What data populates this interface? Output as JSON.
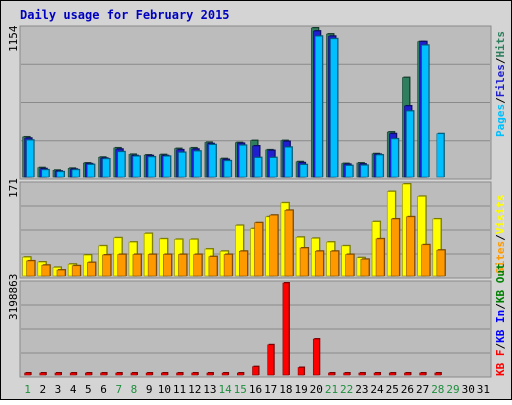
{
  "chart_data": [
    {
      "type": "bar",
      "panel": "top",
      "title": "Daily usage for February 2015",
      "ylabel_max": "1154",
      "categories": [
        "1",
        "2",
        "3",
        "4",
        "5",
        "6",
        "7",
        "8",
        "9",
        "10",
        "11",
        "12",
        "13",
        "14",
        "15",
        "16",
        "17",
        "18",
        "19",
        "20",
        "21",
        "22",
        "23",
        "24",
        "25",
        "26",
        "27",
        "28",
        "29",
        "30",
        "31"
      ],
      "legend": [
        {
          "name": "Hits",
          "color": "#2f7f5f"
        },
        {
          "name": "Files",
          "color": "#1f1fcf"
        },
        {
          "name": "Pages",
          "color": "#00bfff"
        }
      ],
      "series": [
        {
          "name": "Hits",
          "values": [
            310,
            72,
            52,
            67,
            108,
            153,
            225,
            175,
            170,
            173,
            220,
            225,
            268,
            142,
            266,
            282,
            210,
            282,
            118,
            1154,
            1107,
            104,
            108,
            180,
            348,
            770,
            1048,
            0,
            0,
            0,
            0
          ]
        },
        {
          "name": "Files",
          "values": [
            300,
            64,
            45,
            60,
            102,
            145,
            215,
            165,
            165,
            165,
            210,
            215,
            258,
            135,
            260,
            240,
            205,
            275,
            110,
            1130,
            1090,
            98,
            100,
            175,
            335,
            550,
            1048,
            0,
            0,
            0,
            0
          ]
        },
        {
          "name": "Pages",
          "values": [
            285,
            55,
            40,
            55,
            96,
            140,
            195,
            160,
            155,
            160,
            190,
            200,
            250,
            125,
            245,
            150,
            150,
            230,
            95,
            1090,
            1070,
            88,
            90,
            170,
            295,
            510,
            1020,
            335,
            0,
            0,
            0
          ]
        }
      ],
      "ylim": [
        0,
        1154
      ]
    },
    {
      "type": "bar",
      "panel": "middle",
      "ylabel_max": "171",
      "categories": [
        "1",
        "2",
        "3",
        "4",
        "5",
        "6",
        "7",
        "8",
        "9",
        "10",
        "11",
        "12",
        "13",
        "14",
        "15",
        "16",
        "17",
        "18",
        "19",
        "20",
        "21",
        "22",
        "23",
        "24",
        "25",
        "26",
        "27",
        "28",
        "29",
        "30",
        "31"
      ],
      "legend": [
        {
          "name": "Visits",
          "color": "#ffff00"
        },
        {
          "name": "Sites",
          "color": "#ff9900"
        }
      ],
      "series": [
        {
          "name": "Visits",
          "values": [
            35,
            26,
            16,
            22,
            39,
            56,
            71,
            63,
            79,
            69,
            68,
            68,
            50,
            46,
            94,
            88,
            110,
            136,
            72,
            70,
            63,
            56,
            34,
            101,
            157,
            171,
            148,
            106,
            0,
            0,
            0
          ]
        },
        {
          "name": "Sites",
          "values": [
            28,
            20,
            11,
            19,
            25,
            39,
            40,
            40,
            40,
            40,
            40,
            40,
            36,
            40,
            46,
            99,
            113,
            122,
            52,
            46,
            46,
            40,
            31,
            69,
            106,
            110,
            58,
            48,
            0,
            0,
            0
          ]
        }
      ],
      "ylim": [
        0,
        171
      ]
    },
    {
      "type": "bar",
      "panel": "bottom",
      "ylabel_max": "3198863",
      "categories": [
        "1",
        "2",
        "3",
        "4",
        "5",
        "6",
        "7",
        "8",
        "9",
        "10",
        "11",
        "12",
        "13",
        "14",
        "15",
        "16",
        "17",
        "18",
        "19",
        "20",
        "21",
        "22",
        "23",
        "24",
        "25",
        "26",
        "27",
        "28",
        "29",
        "30",
        "31"
      ],
      "legend": [
        {
          "name": "KBytes",
          "color": "#ff0000"
        },
        {
          "name": "KB In",
          "color": "#0000ff"
        },
        {
          "name": "KB Out",
          "color": "#008000"
        }
      ],
      "series": [
        {
          "name": "KBytes",
          "values": [
            10000,
            10000,
            10000,
            10000,
            10000,
            10000,
            10000,
            10000,
            10000,
            10000,
            10000,
            10000,
            10000,
            10000,
            10000,
            290000,
            1050000,
            3198863,
            260000,
            1250000,
            10000,
            10000,
            10000,
            10000,
            10000,
            10000,
            60000,
            10000,
            0,
            0,
            0
          ]
        }
      ],
      "ylim": [
        0,
        3198863
      ]
    }
  ],
  "ui": {
    "title": "Daily usage for February 2015",
    "top_ymax": "1154",
    "mid_ymax": "171",
    "bot_ymax": "3198863",
    "legend_top": [
      {
        "text": "Pages",
        "color": "#00bfff"
      },
      {
        "text": "/",
        "color": "#000000"
      },
      {
        "text": "Files",
        "color": "#1f1fcf"
      },
      {
        "text": "/",
        "color": "#000000"
      },
      {
        "text": "Hits",
        "color": "#2f7f5f"
      }
    ],
    "legend_mid": [
      {
        "text": "Sites",
        "color": "#ff9900"
      },
      {
        "text": "/",
        "color": "#000000"
      },
      {
        "text": "Visits",
        "color": "#ffff00"
      }
    ],
    "legend_bot": [
      {
        "text": "KB F",
        "color": "#ff0000"
      },
      {
        "text": "/",
        "color": "#000000"
      },
      {
        "text": "KB In",
        "color": "#0000ff"
      },
      {
        "text": "/",
        "color": "#000000"
      },
      {
        "text": "KB Out",
        "color": "#008000"
      }
    ],
    "weekend_days": [
      "1",
      "7",
      "8",
      "14",
      "15",
      "21",
      "22",
      "28",
      "29"
    ],
    "colors": {
      "background": "#d4d4d4",
      "panel": "#bcbcbc",
      "title": "#0000c0",
      "weekday_label": "#000000",
      "weekend_label": "#1f8f3f"
    }
  }
}
